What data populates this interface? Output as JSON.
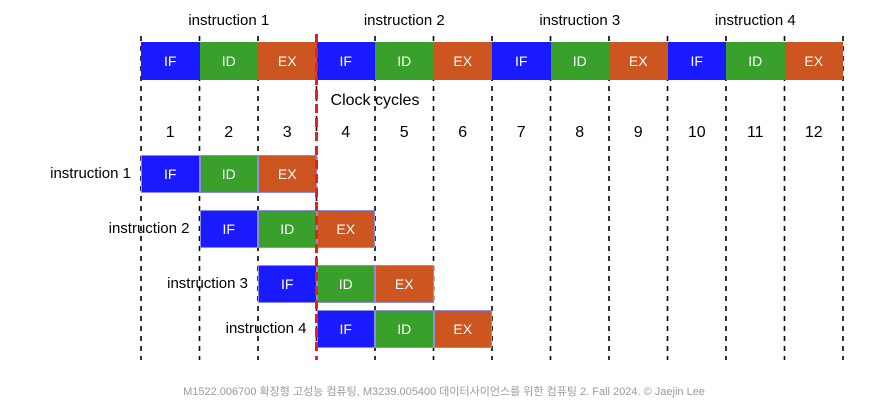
{
  "colors": {
    "IF": "#1a1aff",
    "ID": "#3aa02c",
    "EX": "#cc5520",
    "red_line": "#e02222"
  },
  "top_headers": [
    "instruction 1",
    "instruction 2",
    "instruction 3",
    "instruction 4"
  ],
  "sequential_row": [
    "IF",
    "ID",
    "EX",
    "IF",
    "ID",
    "EX",
    "IF",
    "ID",
    "EX",
    "IF",
    "ID",
    "EX"
  ],
  "cycles_title": "Clock cycles",
  "cycles": [
    "1",
    "2",
    "3",
    "4",
    "5",
    "6",
    "7",
    "8",
    "9",
    "10",
    "11",
    "12"
  ],
  "pipeline": [
    {
      "label": "instruction 1",
      "start_cycle": 1,
      "stages": [
        "IF",
        "ID",
        "EX"
      ]
    },
    {
      "label": "instruction 2",
      "start_cycle": 2,
      "stages": [
        "IF",
        "ID",
        "EX"
      ]
    },
    {
      "label": "instruction 3",
      "start_cycle": 3,
      "stages": [
        "IF",
        "ID",
        "EX"
      ]
    },
    {
      "label": "instruction 4",
      "start_cycle": 4,
      "stages": [
        "IF",
        "ID",
        "EX"
      ]
    }
  ],
  "footer": "M1522.006700 확장형 고성능 컴퓨팅, M3239.005400 데이터사이언스를 위한 컴퓨팅 2. Fall 2024.  © Jaejin Lee"
}
